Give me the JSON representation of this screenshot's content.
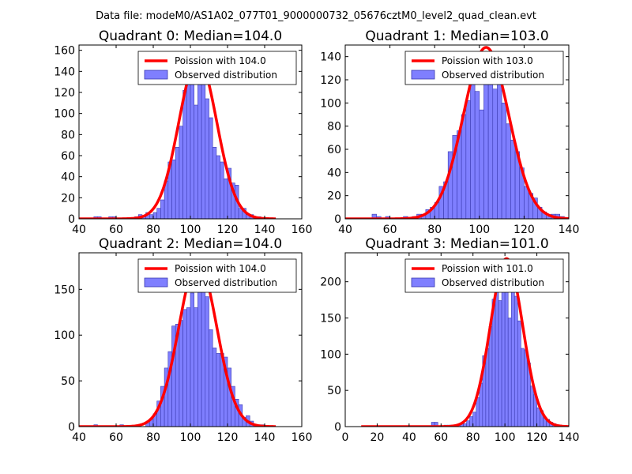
{
  "figure": {
    "suptitle": "Data file: modeM0/AS1A02_077T01_9000000732_05676cztM0_level2_quad_clean.evt"
  },
  "colors": {
    "poisson_line": "#ff0000",
    "bar_fill": "#7f7fff",
    "bar_edge": "#3a3ab0"
  },
  "chart_data": [
    {
      "type": "bar",
      "title": "Quadrant 0: Median=104.0",
      "xlabel": "",
      "ylabel": "",
      "xlim": [
        40,
        160
      ],
      "ylim": [
        0,
        165
      ],
      "xticks": [
        40,
        60,
        80,
        100,
        120,
        140,
        160
      ],
      "yticks": [
        0,
        20,
        40,
        60,
        80,
        100,
        120,
        140,
        160
      ],
      "legend": {
        "position": "top-right",
        "entries": [
          "Poission with 104.0",
          "Observed distribution"
        ]
      },
      "poisson_mean": 104.0,
      "poisson_peak": 152,
      "bins": [
        [
          49,
          2
        ],
        [
          51,
          2
        ],
        [
          55,
          0
        ],
        [
          57,
          2
        ],
        [
          59,
          2
        ],
        [
          63,
          0
        ],
        [
          69,
          0
        ],
        [
          71,
          2
        ],
        [
          73,
          4
        ],
        [
          75,
          2
        ],
        [
          77,
          6
        ],
        [
          79,
          4
        ],
        [
          81,
          6
        ],
        [
          83,
          10
        ],
        [
          85,
          18
        ],
        [
          87,
          36
        ],
        [
          89,
          54
        ],
        [
          91,
          56
        ],
        [
          93,
          68
        ],
        [
          95,
          88
        ],
        [
          97,
          122
        ],
        [
          99,
          130
        ],
        [
          101,
          134
        ],
        [
          103,
          108
        ],
        [
          105,
          150
        ],
        [
          107,
          128
        ],
        [
          109,
          114
        ],
        [
          111,
          96
        ],
        [
          113,
          68
        ],
        [
          115,
          60
        ],
        [
          117,
          54
        ],
        [
          119,
          38
        ],
        [
          121,
          48
        ],
        [
          123,
          34
        ],
        [
          125,
          32
        ],
        [
          127,
          10
        ],
        [
          129,
          10
        ],
        [
          131,
          4
        ],
        [
          133,
          4
        ],
        [
          135,
          2
        ],
        [
          137,
          2
        ],
        [
          139,
          1
        ],
        [
          141,
          0
        ]
      ]
    },
    {
      "type": "bar",
      "title": "Quadrant 1: Median=103.0",
      "xlabel": "",
      "ylabel": "",
      "xlim": [
        40,
        140
      ],
      "ylim": [
        0,
        150
      ],
      "xticks": [
        40,
        60,
        80,
        100,
        120,
        140
      ],
      "yticks": [
        0,
        20,
        40,
        60,
        80,
        100,
        120,
        140
      ],
      "legend": {
        "position": "top-right",
        "entries": [
          "Poission with 103.0",
          "Observed distribution"
        ]
      },
      "poisson_mean": 103.0,
      "poisson_peak": 148,
      "bins": [
        [
          53,
          4
        ],
        [
          55,
          2
        ],
        [
          59,
          2
        ],
        [
          67,
          2
        ],
        [
          71,
          2
        ],
        [
          73,
          4
        ],
        [
          75,
          4
        ],
        [
          77,
          8
        ],
        [
          79,
          10
        ],
        [
          81,
          14
        ],
        [
          83,
          28
        ],
        [
          85,
          32
        ],
        [
          87,
          58
        ],
        [
          89,
          72
        ],
        [
          91,
          76
        ],
        [
          93,
          90
        ],
        [
          95,
          102
        ],
        [
          97,
          118
        ],
        [
          99,
          110
        ],
        [
          101,
          94
        ],
        [
          103,
          136
        ],
        [
          105,
          126
        ],
        [
          107,
          112
        ],
        [
          109,
          126
        ],
        [
          111,
          100
        ],
        [
          113,
          82
        ],
        [
          115,
          68
        ],
        [
          117,
          58
        ],
        [
          119,
          44
        ],
        [
          121,
          28
        ],
        [
          123,
          22
        ],
        [
          125,
          18
        ],
        [
          127,
          10
        ],
        [
          129,
          6
        ],
        [
          131,
          2
        ],
        [
          133,
          4
        ],
        [
          135,
          4
        ],
        [
          137,
          2
        ]
      ]
    },
    {
      "type": "bar",
      "title": "Quadrant 2: Median=104.0",
      "xlabel": "",
      "ylabel": "",
      "xlim": [
        40,
        160
      ],
      "ylim": [
        0,
        190
      ],
      "xticks": [
        40,
        60,
        80,
        100,
        120,
        140,
        160
      ],
      "yticks": [
        0,
        50,
        100,
        150
      ],
      "legend": {
        "position": "top-right",
        "entries": [
          "Poission with 104.0",
          "Observed distribution"
        ]
      },
      "poisson_mean": 104.0,
      "poisson_peak": 180,
      "bins": [
        [
          49,
          2
        ],
        [
          63,
          2
        ],
        [
          73,
          0
        ],
        [
          77,
          4
        ],
        [
          79,
          8
        ],
        [
          81,
          14
        ],
        [
          83,
          28
        ],
        [
          85,
          44
        ],
        [
          87,
          64
        ],
        [
          89,
          82
        ],
        [
          91,
          110
        ],
        [
          93,
          112
        ],
        [
          95,
          116
        ],
        [
          97,
          128
        ],
        [
          99,
          130
        ],
        [
          101,
          146
        ],
        [
          103,
          130
        ],
        [
          105,
          150
        ],
        [
          107,
          170
        ],
        [
          109,
          142
        ],
        [
          111,
          106
        ],
        [
          113,
          86
        ],
        [
          115,
          80
        ],
        [
          117,
          80
        ],
        [
          119,
          76
        ],
        [
          121,
          64
        ],
        [
          123,
          44
        ],
        [
          125,
          30
        ],
        [
          127,
          24
        ],
        [
          129,
          10
        ],
        [
          131,
          12
        ],
        [
          133,
          6
        ],
        [
          135,
          2
        ],
        [
          137,
          2
        ],
        [
          139,
          2
        ]
      ]
    },
    {
      "type": "bar",
      "title": "Quadrant 3: Median=101.0",
      "xlabel": "",
      "ylabel": "",
      "xlim": [
        0,
        140
      ],
      "ylim": [
        0,
        240
      ],
      "xticks": [
        0,
        20,
        40,
        60,
        80,
        100,
        120,
        140
      ],
      "yticks": [
        0,
        50,
        100,
        150,
        200
      ],
      "legend": {
        "position": "top-right",
        "entries": [
          "Poission with 101.0",
          "Observed distribution"
        ]
      },
      "poisson_mean": 101.0,
      "poisson_peak": 232,
      "bins": [
        [
          55,
          6
        ],
        [
          57,
          6
        ],
        [
          63,
          2
        ],
        [
          65,
          2
        ],
        [
          67,
          2
        ],
        [
          71,
          2
        ],
        [
          73,
          4
        ],
        [
          75,
          4
        ],
        [
          77,
          8
        ],
        [
          79,
          14
        ],
        [
          81,
          20
        ],
        [
          83,
          40
        ],
        [
          85,
          60
        ],
        [
          87,
          98
        ],
        [
          89,
          108
        ],
        [
          91,
          138
        ],
        [
          93,
          176
        ],
        [
          95,
          190
        ],
        [
          97,
          174
        ],
        [
          99,
          230
        ],
        [
          101,
          210
        ],
        [
          103,
          150
        ],
        [
          105,
          214
        ],
        [
          107,
          180
        ],
        [
          109,
          146
        ],
        [
          111,
          108
        ],
        [
          113,
          106
        ],
        [
          115,
          88
        ],
        [
          117,
          56
        ],
        [
          119,
          44
        ],
        [
          121,
          26
        ],
        [
          123,
          22
        ],
        [
          125,
          12
        ],
        [
          127,
          10
        ],
        [
          129,
          6
        ],
        [
          131,
          4
        ],
        [
          133,
          2
        ]
      ]
    }
  ]
}
